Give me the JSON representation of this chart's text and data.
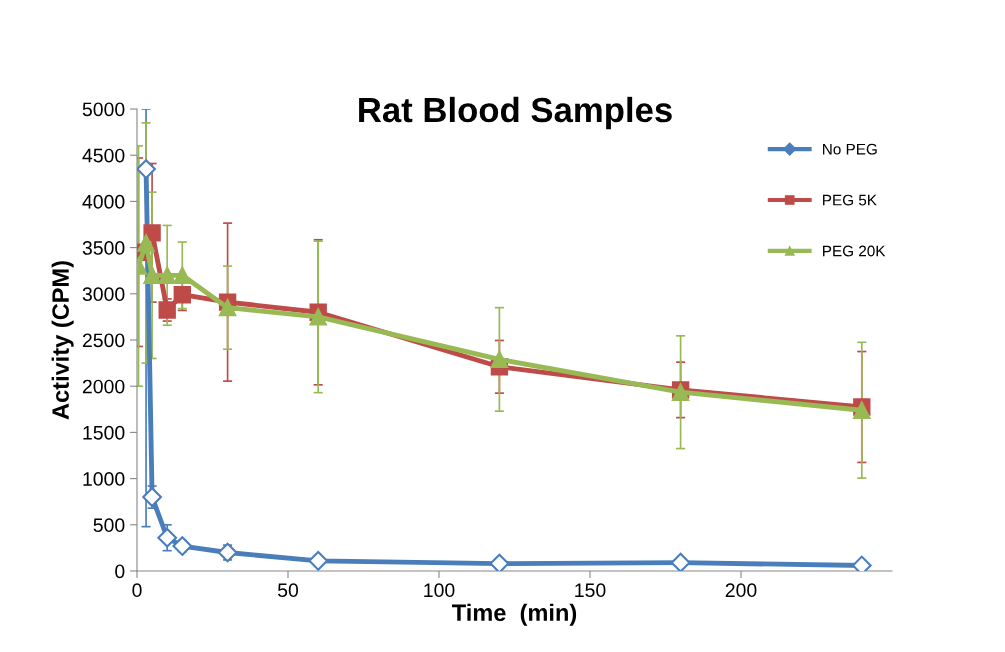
{
  "chart_data": {
    "type": "line",
    "title": "Rat Blood Samples",
    "xlabel": "Time  (min)",
    "ylabel": "Activity (CPM)",
    "xlim": [
      0,
      250
    ],
    "xticks": [
      0,
      50,
      100,
      150,
      200
    ],
    "ylim": [
      0,
      5000
    ],
    "yticks": [
      0,
      500,
      1000,
      1500,
      2000,
      2500,
      3000,
      3500,
      4000,
      4500,
      5000
    ],
    "grid": false,
    "legend": "right",
    "series": [
      {
        "name": "No PEG",
        "color": "#4a7ebb",
        "marker": "diamond",
        "x": [
          3,
          5,
          10,
          15,
          30,
          60,
          120,
          180,
          240
        ],
        "values": [
          4350,
          800,
          360,
          270,
          200,
          110,
          80,
          90,
          60
        ],
        "errors": [
          [
            480,
            5000
          ],
          120,
          140,
          60,
          80,
          50,
          null,
          null,
          null
        ]
      },
      {
        "name": "PEG 5K",
        "color": "#be4b48",
        "marker": "square",
        "x": [
          0.5,
          5,
          10,
          15,
          30,
          60,
          120,
          180,
          240
        ],
        "values": [
          3450,
          3660,
          2825,
          2990,
          2910,
          2800,
          2210,
          1960,
          1775
        ],
        "errors": [
          1020,
          750,
          120,
          170,
          855,
          785,
          285,
          300,
          600
        ]
      },
      {
        "name": "PEG 20K",
        "color": "#98b954",
        "marker": "triangle",
        "x": [
          0.5,
          3,
          5,
          10,
          15,
          30,
          60,
          120,
          180,
          240
        ],
        "values": [
          3300,
          3550,
          3200,
          3200,
          3200,
          2850,
          2750,
          2290,
          1935,
          1740
        ],
        "errors": [
          1300,
          1300,
          900,
          540,
          360,
          450,
          820,
          560,
          610,
          735
        ]
      }
    ]
  }
}
